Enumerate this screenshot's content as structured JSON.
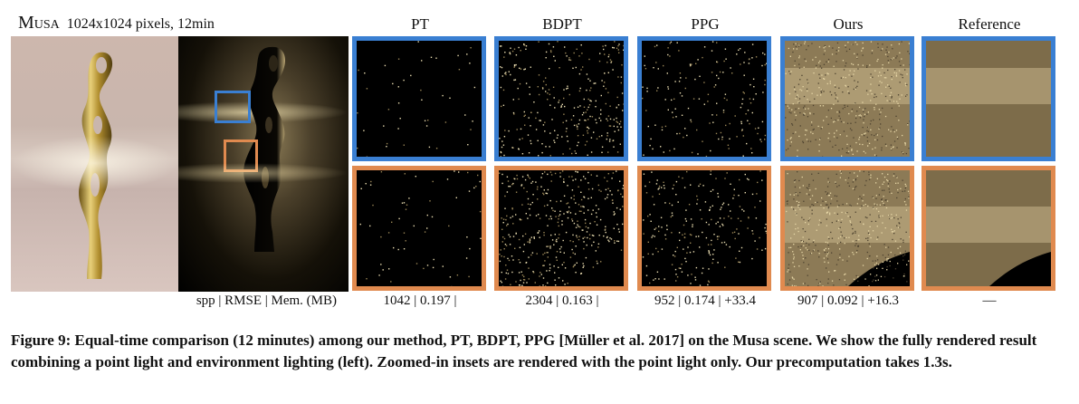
{
  "scene": {
    "name": "Musa",
    "details": "1024x1024 pixels, 12min"
  },
  "colors": {
    "inset_top": "#3a7fd2",
    "inset_bottom": "#e08a4f"
  },
  "columns": [
    {
      "label": "PT",
      "metric": "1042 | 0.197 |"
    },
    {
      "label": "BDPT",
      "metric": "2304 | 0.163 |"
    },
    {
      "label": "PPG",
      "metric": "952 | 0.174 | +33.4"
    },
    {
      "label": "Ours",
      "metric": "907 | 0.092 | +16.3"
    },
    {
      "label": "Reference",
      "metric": "—"
    }
  ],
  "metric_header": "spp | RMSE | Mem. (MB)",
  "caption": "Figure 9: Equal-time comparison (12 minutes) among our method, PT, BDPT, PPG [Müller et al. 2017] on the Musa scene. We show the fully rendered result combining a point light and environment lighting (left). Zoomed-in insets are rendered with the point light only. Our precomputation takes 1.3s."
}
